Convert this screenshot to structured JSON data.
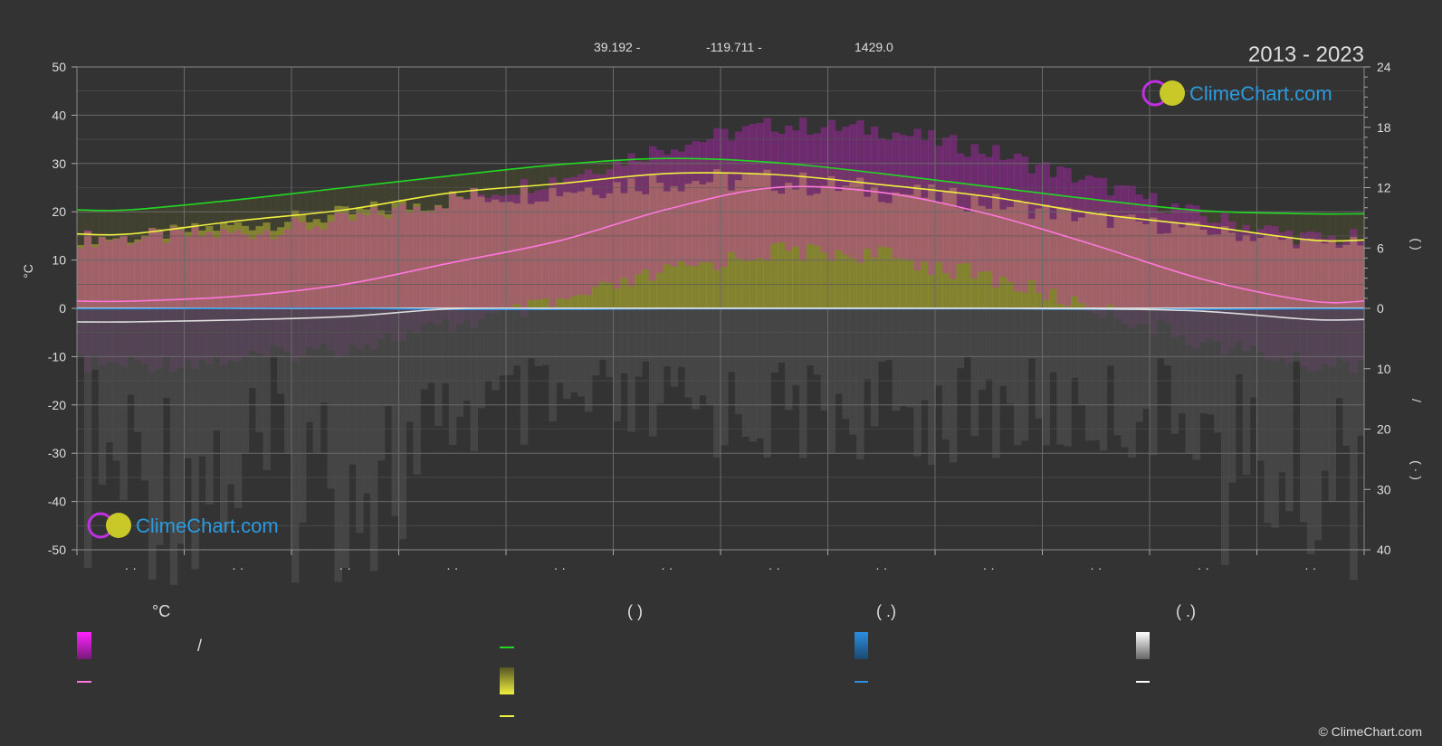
{
  "header": {
    "latitude": "39.192 -",
    "longitude": "-119.711 -",
    "elevation": "1429.0",
    "period": "2013 - 2023"
  },
  "logo": {
    "text": "ClimeChart.com"
  },
  "copyright": "© ClimeChart.com",
  "axes": {
    "left_label": "°C",
    "left_ticks": [
      "50",
      "40",
      "30",
      "20",
      "10",
      "0",
      "-10",
      "-20",
      "-30",
      "-40",
      "-50"
    ],
    "right_upper_ticks": [
      "24",
      "18",
      "12",
      "6",
      "0"
    ],
    "right_lower_ticks": [
      "10",
      "20",
      "30",
      "40"
    ],
    "right_upper_label": "(    )",
    "right_lower_label": "(  ·  )",
    "right_slash": "/",
    "month_labels": [
      "· ·",
      "· ·",
      "· ·",
      "· ·",
      "· ·",
      "· ·",
      "· ·",
      "· ·",
      "· ·",
      "· ·",
      "· ·",
      "· ·"
    ]
  },
  "legend": {
    "col1": {
      "heading": "°C",
      "item1": "/",
      "item2": ""
    },
    "col2": {
      "heading": "(          )",
      "item1": "",
      "item2": "",
      "item3": ""
    },
    "col3": {
      "heading": "(   .)",
      "item1": "",
      "item2": ""
    },
    "col4": {
      "heading": "(   .)",
      "item1": "",
      "item2": ""
    }
  },
  "colors": {
    "daylight": "#22d822",
    "sunshine": "#f0f040",
    "mean_temp": "#ff77dd",
    "rain": "#2c8ee0",
    "snow": "#dddddd",
    "temp_band": "#e020e0",
    "sunshine_band": "#b8b830"
  },
  "chart_data": {
    "type": "line",
    "xlabel": "",
    "ylabel": "°C",
    "ylim": [
      -50,
      50
    ],
    "y2_upper_lim": [
      0,
      24
    ],
    "y2_lower_lim": [
      0,
      40
    ],
    "x_months": [
      0.5,
      1.5,
      2.5,
      3.5,
      4.5,
      5.5,
      6.5,
      7.5,
      8.5,
      9.5,
      10.5,
      11.5
    ],
    "series": [
      {
        "values": [
          9.8,
          10.8,
          12.0,
          13.2,
          14.3,
          14.9,
          14.5,
          13.4,
          12.1,
          10.8,
          9.7,
          9.4
        ]
      },
      {
        "values": [
          7.4,
          8.7,
          9.8,
          11.5,
          12.4,
          13.4,
          13.3,
          12.3,
          11.1,
          9.4,
          8.2,
          6.8
        ]
      },
      {
        "values": [
          1.5,
          2.5,
          5,
          9.5,
          14,
          20.5,
          25,
          24,
          19.5,
          13,
          6,
          1.5
        ]
      },
      {
        "values": [
          -0.1,
          0.0,
          0.0,
          -0.2,
          -0.2,
          -0.1,
          -0.1,
          -0.1,
          -0.1,
          -0.2,
          -0.2,
          -0.1
        ]
      },
      {
        "values": [
          -2.8,
          -2.4,
          -1.7,
          -0.1,
          0.0,
          0.0,
          0.0,
          0.0,
          0.0,
          -0.1,
          -0.6,
          -2.3
        ]
      }
    ]
  }
}
